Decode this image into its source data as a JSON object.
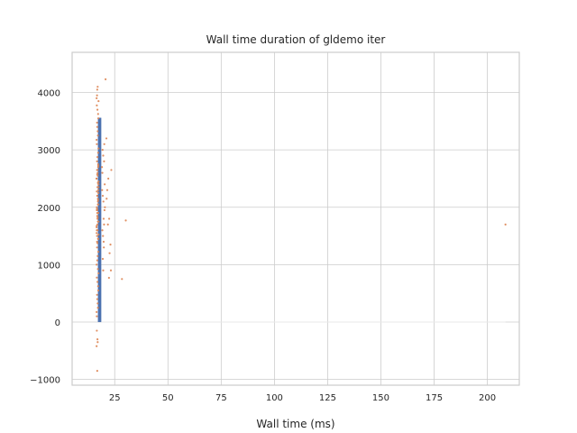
{
  "chart_data": {
    "type": "scatter",
    "title": "Wall time duration of gldemo iter",
    "xlabel": "Wall time (ms)",
    "ylabel": "",
    "xlim": [
      5,
      215
    ],
    "ylim": [
      -1100,
      4700
    ],
    "xticks": [
      25,
      50,
      75,
      100,
      125,
      150,
      175,
      200
    ],
    "yticks": [
      -1000,
      0,
      1000,
      2000,
      3000,
      4000
    ],
    "xtick_labels": [
      "25",
      "50",
      "75",
      "100",
      "125",
      "150",
      "175",
      "200"
    ],
    "ytick_labels": [
      "−1000",
      "0",
      "1000",
      "2000",
      "3000",
      "4000"
    ],
    "grid": true,
    "colors": {
      "bars": "#4c72b0",
      "points": "#dd8452",
      "grid": "#cccccc",
      "frame": "#cccccc",
      "text": "#262626"
    },
    "series": [
      {
        "kind": "bar",
        "x": 17.9,
        "width": 1.6,
        "y_bottom": 0,
        "y_top": 3560
      },
      {
        "kind": "points",
        "x": [
          16.6,
          17.1,
          16.8,
          17.3,
          16.9,
          17.4,
          16.5,
          17.0,
          16.7,
          17.2,
          16.6,
          17.1,
          16.8,
          17.3,
          16.9,
          17.4,
          16.5,
          17.0,
          16.7,
          17.2,
          16.6,
          17.1,
          16.8,
          17.3,
          16.9,
          17.4,
          16.5,
          17.0,
          16.7,
          17.2,
          16.6,
          17.1,
          16.8,
          17.3,
          16.9,
          17.4,
          16.5,
          17.0,
          16.7,
          17.2,
          16.6,
          17.1,
          16.8,
          17.3,
          16.9,
          17.4,
          16.5,
          17.0,
          16.7,
          17.2,
          16.6,
          17.1,
          16.8,
          17.3,
          16.9,
          17.4,
          16.5,
          17.0,
          16.7,
          17.2,
          16.6,
          17.1,
          16.8,
          17.3,
          16.9,
          17.4,
          16.5,
          17.0,
          16.7,
          17.2,
          16.6,
          17.1,
          16.8,
          17.3,
          16.9,
          17.4,
          16.5,
          17.0,
          16.7,
          17.2,
          16.5,
          16.8,
          17.0,
          16.7,
          16.6,
          16.9,
          16.5,
          17.0,
          16.8,
          19.2,
          19.6,
          20.1,
          19.4,
          19.8,
          20.3,
          19.0,
          19.5,
          20.0,
          19.3,
          19.7,
          20.2,
          19.1,
          19.9,
          19.4,
          20.4,
          19.6,
          19.2,
          20.0,
          19.8,
          21.5,
          22.0,
          21.2,
          22.4,
          21.8,
          23.0,
          22.6,
          23.4,
          30.2,
          28.4,
          20.7,
          21.1,
          23.2,
          22.3,
          208.5
        ],
        "y": [
          100,
          250,
          400,
          550,
          700,
          850,
          1000,
          1150,
          1300,
          1450,
          1600,
          1750,
          1900,
          2050,
          2200,
          2350,
          2500,
          2650,
          2800,
          2950,
          3100,
          3250,
          3400,
          3550,
          3700,
          3850,
          175,
          325,
          475,
          625,
          775,
          925,
          1075,
          1225,
          1375,
          1525,
          1675,
          1825,
          1975,
          2125,
          2275,
          2425,
          2575,
          2725,
          2875,
          3025,
          3175,
          3325,
          3475,
          3625,
          3775,
          2100,
          1950,
          2250,
          1800,
          2400,
          1650,
          2550,
          1500,
          2700,
          2000,
          2150,
          1850,
          2300,
          1700,
          2450,
          1550,
          2600,
          1400,
          2750,
          1950,
          2050,
          2200,
          1900,
          2350,
          1750,
          2500,
          1600,
          2650,
          1450,
          3900,
          4050,
          4100,
          3950,
          -150,
          -300,
          -420,
          -350,
          -850,
          2600,
          2900,
          3100,
          2200,
          1800,
          2400,
          2700,
          1500,
          1700,
          3000,
          2100,
          1950,
          2300,
          1300,
          1100,
          2000,
          900,
          1600,
          2800,
          1400,
          2300,
          2500,
          2150,
          1800,
          1700,
          1350,
          1200,
          2650,
          1770,
          750,
          4230,
          3200,
          900,
          770,
          1700
        ]
      }
    ]
  }
}
